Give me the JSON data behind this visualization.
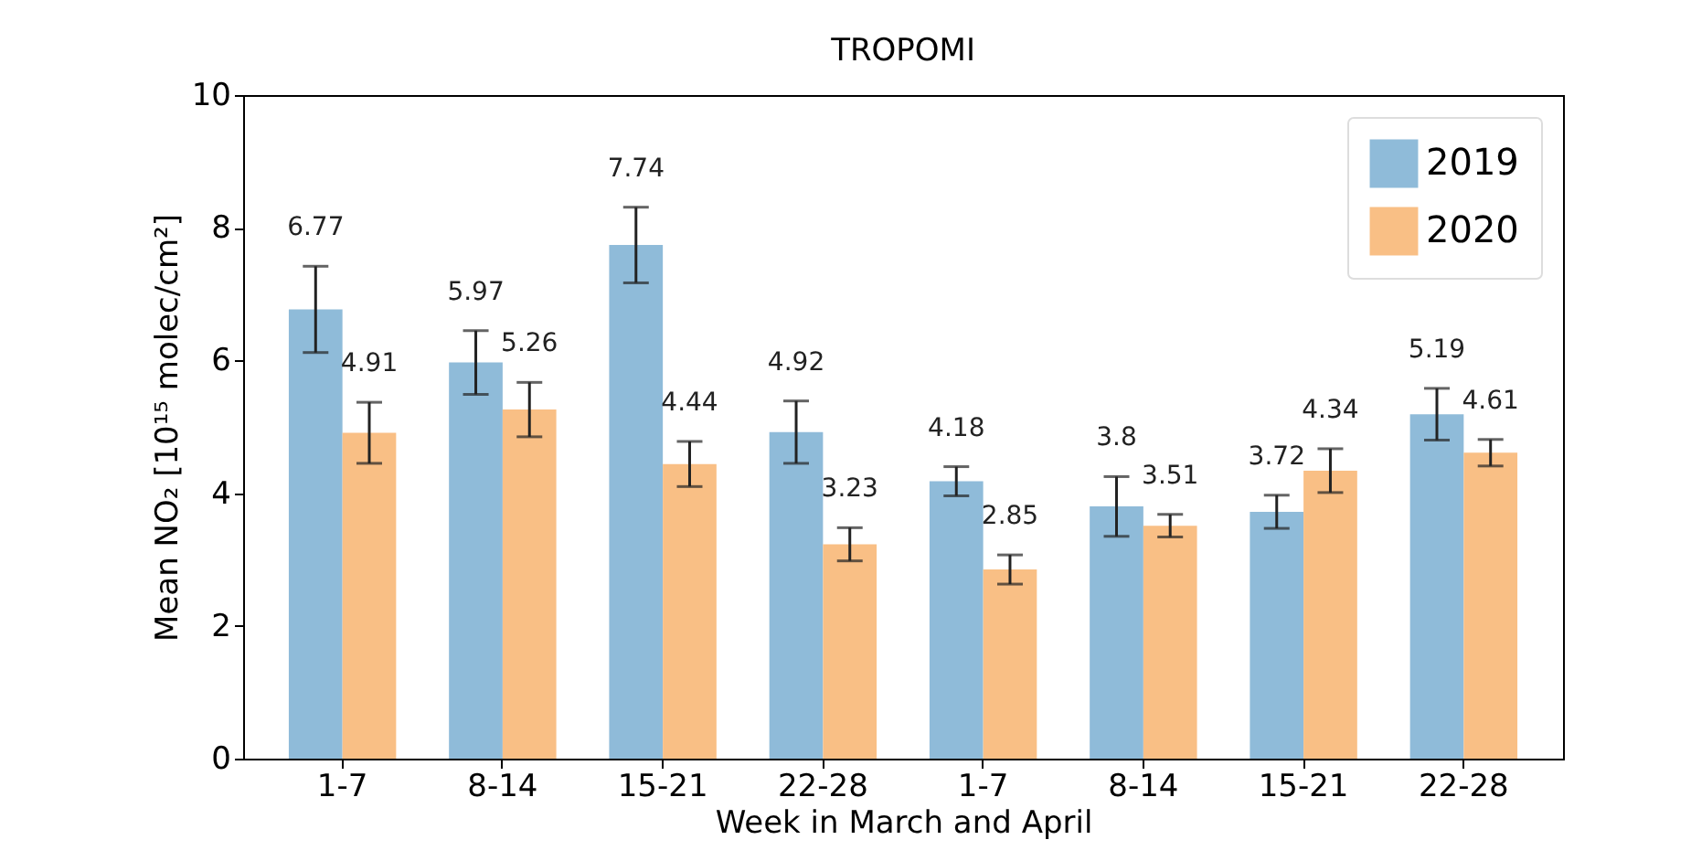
{
  "chart_data": {
    "type": "bar",
    "title": "TROPOMI",
    "xlabel": "Week in March and April",
    "ylabel": "Mean NO₂ [10¹⁵ molec/cm²]",
    "categories": [
      "1-7",
      "8-14",
      "15-21",
      "22-28",
      "1-7",
      "8-14",
      "15-21",
      "22-28"
    ],
    "series": [
      {
        "name": "2019",
        "color": "#8fbbd9",
        "values": [
          6.77,
          5.97,
          7.74,
          4.92,
          4.18,
          3.8,
          3.72,
          5.19
        ],
        "errors": [
          0.65,
          0.48,
          0.57,
          0.47,
          0.22,
          0.45,
          0.25,
          0.39
        ]
      },
      {
        "name": "2020",
        "color": "#f9bf85",
        "values": [
          4.91,
          5.26,
          4.44,
          3.23,
          2.85,
          3.51,
          4.34,
          4.61
        ],
        "errors": [
          0.46,
          0.41,
          0.34,
          0.25,
          0.22,
          0.17,
          0.33,
          0.2
        ]
      }
    ],
    "ylim": [
      0,
      10
    ],
    "yticks": [
      0,
      2,
      4,
      6,
      8,
      10
    ],
    "grid": false,
    "legend": "top right",
    "data_labels": true
  }
}
